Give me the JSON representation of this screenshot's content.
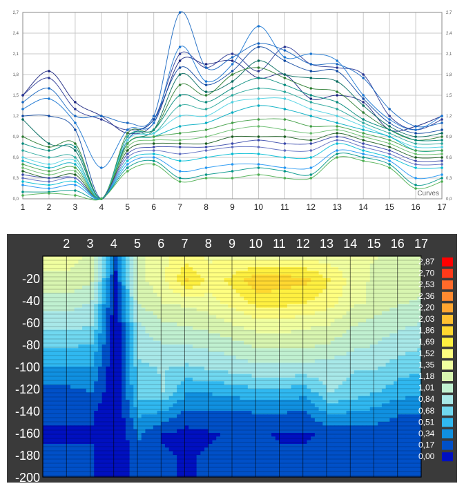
{
  "chart_data": [
    {
      "type": "line",
      "x": [
        1,
        2,
        3,
        4,
        5,
        6,
        7,
        8,
        9,
        10,
        11,
        12,
        13,
        14,
        15,
        16,
        17
      ],
      "xlim": [
        1,
        17
      ],
      "ylim": [
        0,
        2.7
      ],
      "y_ticks": [
        "0,0",
        "0,3",
        "0,6",
        "0,9",
        "1,2",
        "1,5",
        "1,8",
        "2,1",
        "2,4",
        "2,7"
      ],
      "x_ticks": [
        "1",
        "2",
        "3",
        "4",
        "5",
        "6",
        "7",
        "8",
        "9",
        "10",
        "11",
        "12",
        "13",
        "14",
        "15",
        "16",
        "17"
      ],
      "grid": true,
      "legend_label": "Curves",
      "colors": [
        "#1a237e",
        "#283593",
        "#1565c0",
        "#1976d2",
        "#0d47a1",
        "#00695c",
        "#2e7d32",
        "#00897b",
        "#26a69a",
        "#4dd0e1",
        "#00acc1",
        "#43a047",
        "#66bb6a",
        "#1b5e20",
        "#3949ab",
        "#5c6bc0",
        "#00bcd4",
        "#2196f3",
        "#009688",
        "#4caf50"
      ],
      "series": [
        {
          "values": [
            1.5,
            1.85,
            1.4,
            1.2,
            0.95,
            1.1,
            2.0,
            1.95,
            2.0,
            1.75,
            1.8,
            1.45,
            1.5,
            1.4,
            1.0,
            1.05,
            1.2
          ]
        },
        {
          "values": [
            1.5,
            1.75,
            1.3,
            1.15,
            1.0,
            1.15,
            2.1,
            1.9,
            2.1,
            1.85,
            2.2,
            1.95,
            1.9,
            1.8,
            1.2,
            1.0,
            1.15
          ]
        },
        {
          "values": [
            1.4,
            1.6,
            1.2,
            1.2,
            1.1,
            1.2,
            2.85,
            1.9,
            2.05,
            2.25,
            2.15,
            1.95,
            1.95,
            1.75,
            1.3,
            1.05,
            1.1
          ]
        },
        {
          "values": [
            1.3,
            1.45,
            1.1,
            0.45,
            1.0,
            1.1,
            2.2,
            1.7,
            1.95,
            2.5,
            2.05,
            2.1,
            2.0,
            1.5,
            1.15,
            1.0,
            1.2
          ]
        },
        {
          "values": [
            1.2,
            1.2,
            1.0,
            0.0,
            0.85,
            1.15,
            1.9,
            1.65,
            1.85,
            2.2,
            2.0,
            1.85,
            1.85,
            1.45,
            1.1,
            0.95,
            1.0
          ]
        },
        {
          "values": [
            1.15,
            0.8,
            0.7,
            0.0,
            0.8,
            1.0,
            1.8,
            1.55,
            1.7,
            2.0,
            1.8,
            1.75,
            1.7,
            1.35,
            1.05,
            0.9,
            0.95
          ]
        },
        {
          "values": [
            0.9,
            0.75,
            0.8,
            0.0,
            0.95,
            1.0,
            1.65,
            1.5,
            1.8,
            1.9,
            1.75,
            1.6,
            1.55,
            1.25,
            1.0,
            0.85,
            0.9
          ]
        },
        {
          "values": [
            0.8,
            0.7,
            0.75,
            0.0,
            0.9,
            1.0,
            1.5,
            1.4,
            1.6,
            1.75,
            1.65,
            1.5,
            1.4,
            1.15,
            1.0,
            0.85,
            0.85
          ]
        },
        {
          "values": [
            0.7,
            0.6,
            0.6,
            0.0,
            0.9,
            0.95,
            1.35,
            1.3,
            1.5,
            1.6,
            1.55,
            1.4,
            1.3,
            1.1,
            0.95,
            0.8,
            0.8
          ]
        },
        {
          "values": [
            0.6,
            0.5,
            0.55,
            0.0,
            0.85,
            0.95,
            1.2,
            1.2,
            1.4,
            1.45,
            1.45,
            1.3,
            1.2,
            1.05,
            0.9,
            0.75,
            0.75
          ]
        },
        {
          "values": [
            0.55,
            0.45,
            0.5,
            0.0,
            0.8,
            0.9,
            1.05,
            1.1,
            1.25,
            1.35,
            1.3,
            1.2,
            1.1,
            1.0,
            0.9,
            0.7,
            0.7
          ]
        },
        {
          "values": [
            0.5,
            0.4,
            0.45,
            0.0,
            0.8,
            0.9,
            0.95,
            1.0,
            1.1,
            1.15,
            1.15,
            1.05,
            1.05,
            0.95,
            0.85,
            0.7,
            0.7
          ]
        },
        {
          "values": [
            0.45,
            0.35,
            0.4,
            0.0,
            0.75,
            0.85,
            0.85,
            0.9,
            1.0,
            1.05,
            1.0,
            0.95,
            1.0,
            0.9,
            0.8,
            0.65,
            0.65
          ]
        },
        {
          "values": [
            0.4,
            0.3,
            0.35,
            0.0,
            0.7,
            0.8,
            0.8,
            0.8,
            0.9,
            0.9,
            0.9,
            0.85,
            0.95,
            0.85,
            0.75,
            0.6,
            0.6
          ]
        },
        {
          "values": [
            0.35,
            0.3,
            0.3,
            0.0,
            0.65,
            0.75,
            0.75,
            0.75,
            0.8,
            0.85,
            0.8,
            0.8,
            0.9,
            0.8,
            0.7,
            0.55,
            0.55
          ]
        },
        {
          "values": [
            0.3,
            0.25,
            0.3,
            0.0,
            0.6,
            0.7,
            0.65,
            0.7,
            0.75,
            0.75,
            0.7,
            0.7,
            0.85,
            0.75,
            0.65,
            0.5,
            0.5
          ]
        },
        {
          "values": [
            0.25,
            0.2,
            0.25,
            0.0,
            0.55,
            0.65,
            0.55,
            0.6,
            0.65,
            0.65,
            0.6,
            0.6,
            0.8,
            0.7,
            0.6,
            0.45,
            0.45
          ]
        },
        {
          "values": [
            0.2,
            0.15,
            0.2,
            0.0,
            0.5,
            0.6,
            0.4,
            0.45,
            0.5,
            0.5,
            0.45,
            0.45,
            0.7,
            0.65,
            0.55,
            0.3,
            0.35
          ]
        },
        {
          "values": [
            0.1,
            0.1,
            0.12,
            0.0,
            0.45,
            0.55,
            0.3,
            0.35,
            0.4,
            0.45,
            0.4,
            0.35,
            0.65,
            0.6,
            0.5,
            0.2,
            0.3
          ]
        },
        {
          "values": [
            0.05,
            0.08,
            0.05,
            0.0,
            0.4,
            0.5,
            0.25,
            0.3,
            0.3,
            0.35,
            0.3,
            0.3,
            0.6,
            0.55,
            0.45,
            0.15,
            0.25
          ]
        }
      ]
    },
    {
      "type": "heatmap",
      "x_ticks": [
        "2",
        "3",
        "4",
        "5",
        "6",
        "7",
        "8",
        "9",
        "10",
        "11",
        "12",
        "13",
        "14",
        "15",
        "16",
        "17"
      ],
      "x": [
        2,
        3,
        4,
        5,
        6,
        7,
        8,
        9,
        10,
        11,
        12,
        13,
        14,
        15,
        16,
        17
      ],
      "xlim": [
        1,
        17
      ],
      "ylim": [
        0,
        -200
      ],
      "y_ticks": [
        "-20",
        "-40",
        "-60",
        "-80",
        "-100",
        "-120",
        "-140",
        "-160",
        "-180",
        "-200"
      ],
      "y_values": [
        -20,
        -40,
        -60,
        -80,
        -100,
        -120,
        -140,
        -160,
        -180,
        -200
      ],
      "colorbar_labels": [
        "2,87",
        "2,70",
        "2,53",
        "2,36",
        "2,20",
        "2,03",
        "1,86",
        "1,69",
        "1,52",
        "1,35",
        "1,18",
        "1,01",
        "0,84",
        "0,68",
        "0,51",
        "0,34",
        "0,17",
        "0,00"
      ],
      "colorbar_colors": [
        "#ff0000",
        "#ff3a1a",
        "#ff6a2a",
        "#ff8a30",
        "#ffa530",
        "#ffc030",
        "#ffd830",
        "#fff040",
        "#ffff80",
        "#f0ffa0",
        "#d8f5b0",
        "#c0f0d0",
        "#a8e8e8",
        "#70d8f0",
        "#30b8f0",
        "#1090e0",
        "#0050c8",
        "#0010c0"
      ],
      "values": [
        [
          1.4,
          1.3,
          0.2,
          1.3,
          1.5,
          1.6,
          1.5,
          1.5,
          1.45,
          1.5,
          1.5,
          1.45,
          1.4,
          1.35,
          1.3,
          1.3
        ],
        [
          1.3,
          1.2,
          0.15,
          1.3,
          1.45,
          1.9,
          1.6,
          1.75,
          2.0,
          1.95,
          1.9,
          1.7,
          1.45,
          1.3,
          1.3,
          1.25
        ],
        [
          1.1,
          1.0,
          0.05,
          1.2,
          1.35,
          1.4,
          1.45,
          1.6,
          1.75,
          1.75,
          1.7,
          1.6,
          1.4,
          1.3,
          1.2,
          1.15
        ],
        [
          0.9,
          0.85,
          0.0,
          1.0,
          1.15,
          1.2,
          1.25,
          1.35,
          1.45,
          1.45,
          1.4,
          1.35,
          1.2,
          1.1,
          1.05,
          1.0
        ],
        [
          0.7,
          0.65,
          0.0,
          0.9,
          1.0,
          1.0,
          1.05,
          1.1,
          1.2,
          1.2,
          1.2,
          1.15,
          1.05,
          1.0,
          0.9,
          0.85
        ],
        [
          0.5,
          0.5,
          0.0,
          0.8,
          0.85,
          0.8,
          0.85,
          0.9,
          0.95,
          0.95,
          0.95,
          0.9,
          0.85,
          0.85,
          0.75,
          0.7
        ],
        [
          0.3,
          0.35,
          0.0,
          0.75,
          0.85,
          0.55,
          0.55,
          0.6,
          0.65,
          0.65,
          0.6,
          0.85,
          0.8,
          0.7,
          0.6,
          0.55
        ],
        [
          0.2,
          0.2,
          0.0,
          0.55,
          0.5,
          0.3,
          0.3,
          0.3,
          0.35,
          0.35,
          0.3,
          0.55,
          0.5,
          0.45,
          0.35,
          0.35
        ],
        [
          0.15,
          0.15,
          0.0,
          0.35,
          0.15,
          0.1,
          0.15,
          0.2,
          0.2,
          0.15,
          0.15,
          0.2,
          0.25,
          0.25,
          0.2,
          0.2
        ],
        [
          0.2,
          0.2,
          0.0,
          0.3,
          0.2,
          0.15,
          0.2,
          0.2,
          0.25,
          0.2,
          0.2,
          0.25,
          0.3,
          0.3,
          0.25,
          0.25
        ]
      ]
    }
  ]
}
